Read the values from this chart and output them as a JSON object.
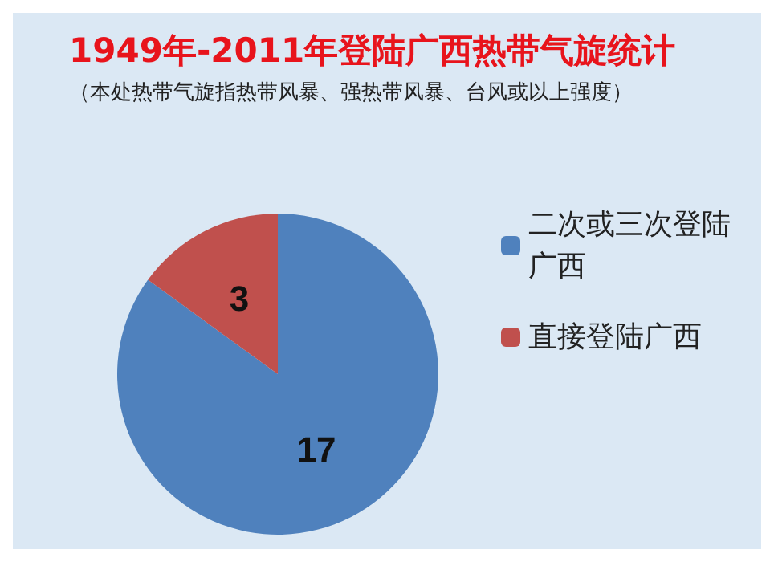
{
  "chart_data": {
    "type": "pie",
    "title": "1949年-2011年登陆广西热带气旋统计",
    "subtitle": "（本处热带气旋指热带风暴、强热带风暴、台风或以上强度）",
    "categories": [
      "二次或三次登陆广西",
      "直接登陆广西"
    ],
    "values": [
      17,
      3
    ],
    "colors": [
      "#4f81bd",
      "#c0504d"
    ],
    "data_labels": true,
    "legend": "right"
  }
}
